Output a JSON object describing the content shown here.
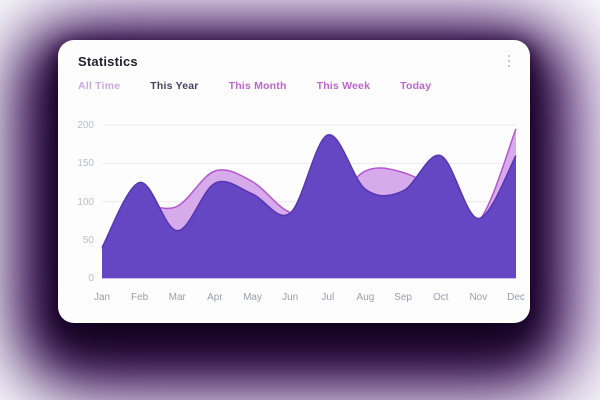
{
  "card": {
    "title": "Statistics",
    "menu_icon": "kebab-vertical-icon",
    "tabs": [
      {
        "label": "All Time",
        "color": "#c9a8e3"
      },
      {
        "label": "This Year",
        "color": "#474060"
      },
      {
        "label": "This Month",
        "color": "#bf63d0"
      },
      {
        "label": "This Week",
        "color": "#bf63d0"
      },
      {
        "label": "Today",
        "color": "#bf63d0"
      }
    ]
  },
  "chart_data": {
    "type": "area",
    "title": "Statistics",
    "categories": [
      "Jan",
      "Feb",
      "Mar",
      "Apr",
      "May",
      "Jun",
      "Jul",
      "Aug",
      "Sep",
      "Oct",
      "Nov",
      "Dec"
    ],
    "series": [
      {
        "name": "secondary-light",
        "fill": "#d7aaec",
        "stroke": "#b356cd",
        "values": [
          38,
          90,
          94,
          140,
          126,
          86,
          92,
          140,
          138,
          112,
          75,
          195
        ]
      },
      {
        "name": "primary-dark",
        "fill": "#6547c4",
        "stroke": "#5636b2",
        "values": [
          40,
          125,
          62,
          124,
          110,
          85,
          187,
          116,
          114,
          160,
          78,
          160
        ]
      }
    ],
    "xlabel": "",
    "ylabel": "",
    "ylim": [
      0,
      200
    ],
    "yticks": [
      200,
      150,
      100,
      50,
      0
    ],
    "grid": true,
    "gridline_color": "#e9eaf1",
    "legend": "none",
    "axis_label_colors": {
      "y": "#b9bdc8",
      "x": "#98a0ac"
    }
  }
}
